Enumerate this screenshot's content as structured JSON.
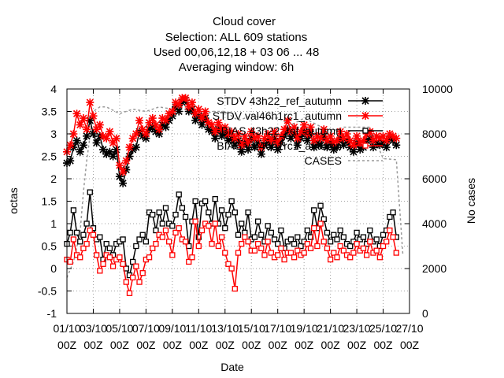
{
  "chart_data": {
    "type": "line",
    "title_lines": [
      "Cloud cover",
      "Selection: ALL     609 stations",
      "Used  00,06,12,18  + 03 06 ... 48",
      "Averaging window:  6h"
    ],
    "xlabel": "Date",
    "ylabel": "octas",
    "y2label": "No cases",
    "ylim": [
      -1,
      4
    ],
    "y2lim": [
      0,
      10000
    ],
    "yticks": [
      "-1",
      "-0.5",
      "0",
      "0.5",
      "1",
      "1.5",
      "2",
      "2.5",
      "3",
      "3.5",
      "4"
    ],
    "y2ticks": [
      "0",
      "2000",
      "4000",
      "6000",
      "8000",
      "10000"
    ],
    "xticks": [
      {
        "top": "01/10",
        "bottom": "00Z"
      },
      {
        "top": "03/10",
        "bottom": "00Z"
      },
      {
        "top": "05/10",
        "bottom": "00Z"
      },
      {
        "top": "07/10",
        "bottom": "00Z"
      },
      {
        "top": "09/10",
        "bottom": "00Z"
      },
      {
        "top": "11/10",
        "bottom": "00Z"
      },
      {
        "top": "13/10",
        "bottom": "00Z"
      },
      {
        "top": "15/10",
        "bottom": "00Z"
      },
      {
        "top": "17/10",
        "bottom": "00Z"
      },
      {
        "top": "19/10",
        "bottom": "00Z"
      },
      {
        "top": "21/10",
        "bottom": "00Z"
      },
      {
        "top": "23/10",
        "bottom": "00Z"
      },
      {
        "top": "25/10",
        "bottom": "00Z"
      },
      {
        "top": "27/10",
        "bottom": "00Z"
      }
    ],
    "xlim_days": [
      0,
      26
    ],
    "grid": true,
    "legend_position": "top-right",
    "series": [
      {
        "name": "STDV 43h22_ref_autumn",
        "color": "#000000",
        "marker": "star",
        "axis": "y",
        "x_days": [
          0.0,
          0.25,
          0.5,
          0.75,
          1.0,
          1.25,
          1.5,
          1.75,
          2.0,
          2.25,
          2.5,
          2.75,
          3.0,
          3.25,
          3.5,
          3.75,
          4.0,
          4.25,
          4.5,
          4.75,
          5.0,
          5.25,
          5.5,
          5.75,
          6.0,
          6.25,
          6.5,
          6.75,
          7.0,
          7.25,
          7.5,
          7.75,
          8.0,
          8.25,
          8.5,
          8.75,
          9.0,
          9.25,
          9.5,
          9.75,
          10.0,
          10.25,
          10.5,
          10.75,
          11.0,
          11.25,
          11.5,
          11.75,
          12.0,
          12.25,
          12.5,
          12.75,
          13.0,
          13.25,
          13.5,
          13.75,
          14.0,
          14.25,
          14.5,
          14.75,
          15.0,
          15.25,
          15.5,
          15.75,
          16.0,
          16.25,
          16.5,
          16.75,
          17.0,
          17.25,
          17.5,
          17.75,
          18.0,
          18.25,
          18.5,
          18.75,
          19.0,
          19.25,
          19.5,
          19.75,
          20.0,
          20.25,
          20.5,
          20.75,
          21.0,
          21.25,
          21.5,
          21.75,
          22.0,
          22.25,
          22.5,
          22.75,
          23.0,
          23.25,
          23.5,
          23.75,
          24.0,
          24.25,
          24.5,
          24.75,
          25.0
        ],
        "values": [
          2.35,
          2.4,
          2.7,
          2.85,
          2.6,
          2.75,
          2.95,
          3.3,
          3.0,
          2.8,
          2.95,
          2.65,
          2.55,
          2.6,
          2.5,
          2.65,
          2.05,
          1.9,
          2.2,
          2.5,
          2.65,
          2.7,
          3.05,
          2.95,
          2.9,
          3.1,
          3.15,
          3.05,
          3.0,
          3.2,
          3.15,
          3.3,
          3.4,
          3.6,
          3.5,
          3.7,
          3.75,
          3.5,
          3.55,
          3.3,
          3.4,
          3.2,
          3.35,
          3.1,
          3.05,
          2.9,
          3.1,
          2.95,
          3.0,
          2.85,
          2.9,
          2.75,
          2.85,
          2.6,
          2.8,
          2.65,
          2.9,
          2.7,
          2.8,
          2.55,
          2.75,
          2.85,
          2.7,
          2.9,
          2.65,
          2.8,
          2.95,
          3.1,
          2.9,
          3.0,
          2.75,
          2.9,
          3.05,
          2.85,
          3.0,
          2.7,
          2.8,
          2.75,
          2.95,
          2.7,
          2.8,
          2.65,
          2.7,
          2.9,
          2.75,
          2.85,
          2.7,
          2.6,
          2.8,
          2.65,
          2.7,
          2.85,
          2.9,
          2.7,
          2.8,
          2.75,
          2.8,
          2.7,
          2.9,
          2.85,
          2.75
        ]
      },
      {
        "name": "STDV val46h1rc1_autumn",
        "color": "#ff0000",
        "marker": "star",
        "axis": "y",
        "x_days": [
          0.0,
          0.25,
          0.5,
          0.75,
          1.0,
          1.25,
          1.5,
          1.75,
          2.0,
          2.25,
          2.5,
          2.75,
          3.0,
          3.25,
          3.5,
          3.75,
          4.0,
          4.25,
          4.5,
          4.75,
          5.0,
          5.25,
          5.5,
          5.75,
          6.0,
          6.25,
          6.5,
          6.75,
          7.0,
          7.25,
          7.5,
          7.75,
          8.0,
          8.25,
          8.5,
          8.75,
          9.0,
          9.25,
          9.5,
          9.75,
          10.0,
          10.25,
          10.5,
          10.75,
          11.0,
          11.25,
          11.5,
          11.75,
          12.0,
          12.25,
          12.5,
          12.75,
          13.0,
          13.25,
          13.5,
          13.75,
          14.0,
          14.25,
          14.5,
          14.75,
          15.0,
          15.25,
          15.5,
          15.75,
          16.0,
          16.25,
          16.5,
          16.75,
          17.0,
          17.25,
          17.5,
          17.75,
          18.0,
          18.25,
          18.5,
          18.75,
          19.0,
          19.25,
          19.5,
          19.75,
          20.0,
          20.25,
          20.5,
          20.75,
          21.0,
          21.25,
          21.5,
          21.75,
          22.0,
          22.25,
          22.5,
          22.75,
          23.0,
          23.25,
          23.5,
          23.75,
          24.0,
          24.25,
          24.5,
          24.75,
          25.0
        ],
        "values": [
          2.6,
          2.75,
          3.0,
          3.45,
          3.2,
          3.35,
          3.1,
          3.7,
          3.4,
          3.1,
          3.2,
          2.95,
          2.9,
          3.05,
          2.8,
          2.9,
          2.3,
          2.15,
          2.4,
          2.7,
          2.9,
          3.0,
          3.3,
          3.1,
          3.0,
          3.25,
          3.35,
          3.2,
          3.1,
          3.35,
          3.3,
          3.45,
          3.5,
          3.7,
          3.65,
          3.8,
          3.8,
          3.6,
          3.7,
          3.45,
          3.55,
          3.35,
          3.5,
          3.25,
          3.2,
          3.05,
          3.25,
          3.1,
          3.15,
          3.0,
          3.05,
          2.9,
          3.0,
          2.75,
          2.95,
          2.8,
          3.05,
          2.9,
          2.95,
          2.7,
          2.9,
          3.0,
          2.85,
          3.05,
          2.8,
          2.95,
          3.1,
          3.3,
          3.05,
          3.15,
          2.9,
          3.05,
          3.2,
          3.0,
          3.15,
          2.85,
          2.95,
          2.9,
          3.1,
          2.85,
          2.95,
          2.8,
          2.85,
          3.05,
          2.9,
          3.0,
          2.85,
          2.75,
          2.95,
          2.8,
          2.85,
          3.0,
          3.05,
          2.85,
          2.95,
          2.9,
          2.95,
          2.85,
          3.0,
          2.95,
          2.9
        ]
      },
      {
        "name": "BIAS 43h22_ref_autumn",
        "color": "#000000",
        "marker": "square",
        "axis": "y",
        "x_days": [
          0.0,
          0.25,
          0.5,
          0.75,
          1.0,
          1.25,
          1.5,
          1.75,
          2.0,
          2.25,
          2.5,
          2.75,
          3.0,
          3.25,
          3.5,
          3.75,
          4.0,
          4.25,
          4.5,
          4.75,
          5.0,
          5.25,
          5.5,
          5.75,
          6.0,
          6.25,
          6.5,
          6.75,
          7.0,
          7.25,
          7.5,
          7.75,
          8.0,
          8.25,
          8.5,
          8.75,
          9.0,
          9.25,
          9.5,
          9.75,
          10.0,
          10.25,
          10.5,
          10.75,
          11.0,
          11.25,
          11.5,
          11.75,
          12.0,
          12.25,
          12.5,
          12.75,
          13.0,
          13.25,
          13.5,
          13.75,
          14.0,
          14.25,
          14.5,
          14.75,
          15.0,
          15.25,
          15.5,
          15.75,
          16.0,
          16.25,
          16.5,
          16.75,
          17.0,
          17.25,
          17.5,
          17.75,
          18.0,
          18.25,
          18.5,
          18.75,
          19.0,
          19.25,
          19.5,
          19.75,
          20.0,
          20.25,
          20.5,
          20.75,
          21.0,
          21.25,
          21.5,
          21.75,
          22.0,
          22.25,
          22.5,
          22.75,
          23.0,
          23.25,
          23.5,
          23.75,
          24.0,
          24.25,
          24.5,
          24.75,
          25.0
        ],
        "values": [
          0.55,
          0.8,
          1.3,
          0.8,
          0.6,
          0.75,
          1.0,
          1.7,
          0.9,
          0.65,
          0.7,
          0.2,
          0.55,
          0.45,
          0.3,
          0.55,
          0.6,
          0.65,
          0.0,
          -0.15,
          0.15,
          0.5,
          0.65,
          0.75,
          0.6,
          1.25,
          1.2,
          0.85,
          1.25,
          1.0,
          1.35,
          1.0,
          0.95,
          1.2,
          1.65,
          1.35,
          1.15,
          0.5,
          1.05,
          1.5,
          0.7,
          1.45,
          1.5,
          1.25,
          1.0,
          1.55,
          1.0,
          1.3,
          0.9,
          1.2,
          1.5,
          1.25,
          0.75,
          1.0,
          0.8,
          1.25,
          0.65,
          0.7,
          1.05,
          0.75,
          0.6,
          0.95,
          0.8,
          0.65,
          0.55,
          0.85,
          0.45,
          0.6,
          0.65,
          0.55,
          0.7,
          0.5,
          0.6,
          0.85,
          0.7,
          1.3,
          0.9,
          1.4,
          1.1,
          0.8,
          0.6,
          0.75,
          0.65,
          0.85,
          0.7,
          0.55,
          0.5,
          0.6,
          0.8,
          0.65,
          0.7,
          0.55,
          0.85,
          0.6,
          0.65,
          0.5,
          0.75,
          0.85,
          1.15,
          1.25,
          0.7
        ]
      },
      {
        "name": "BIAS val46h1rc1_autumn",
        "color": "#ff0000",
        "marker": "square",
        "axis": "y",
        "x_days": [
          0.0,
          0.25,
          0.5,
          0.75,
          1.0,
          1.25,
          1.5,
          1.75,
          2.0,
          2.25,
          2.5,
          2.75,
          3.0,
          3.25,
          3.5,
          3.75,
          4.0,
          4.25,
          4.5,
          4.75,
          5.0,
          5.25,
          5.5,
          5.75,
          6.0,
          6.25,
          6.5,
          6.75,
          7.0,
          7.25,
          7.5,
          7.75,
          8.0,
          8.25,
          8.5,
          8.75,
          9.0,
          9.25,
          9.5,
          9.75,
          10.0,
          10.25,
          10.5,
          10.75,
          11.0,
          11.25,
          11.5,
          11.75,
          12.0,
          12.25,
          12.5,
          12.75,
          13.0,
          13.25,
          13.5,
          13.75,
          14.0,
          14.25,
          14.5,
          14.75,
          15.0,
          15.25,
          15.5,
          15.75,
          16.0,
          16.25,
          16.5,
          16.75,
          17.0,
          17.25,
          17.5,
          17.75,
          18.0,
          18.25,
          18.5,
          18.75,
          19.0,
          19.25,
          19.5,
          19.75,
          20.0,
          20.25,
          20.5,
          20.75,
          21.0,
          21.25,
          21.5,
          21.75,
          22.0,
          22.25,
          22.5,
          22.75,
          23.0,
          23.25,
          23.5,
          23.75,
          24.0,
          24.25,
          24.5,
          24.75,
          25.0
        ],
        "values": [
          0.2,
          0.15,
          0.65,
          0.3,
          0.25,
          0.45,
          0.55,
          0.85,
          0.75,
          0.3,
          -0.05,
          0.1,
          0.3,
          0.25,
          0.05,
          0.2,
          0.25,
          0.1,
          -0.3,
          -0.55,
          -0.2,
          0.05,
          -0.3,
          -0.1,
          0.2,
          0.25,
          0.45,
          0.55,
          0.75,
          0.7,
          0.85,
          0.6,
          0.3,
          0.8,
          0.9,
          0.65,
          0.6,
          0.15,
          0.25,
          1.05,
          0.5,
          0.85,
          1.0,
          0.95,
          0.55,
          1.0,
          0.5,
          0.7,
          0.35,
          0.1,
          0.0,
          -0.45,
          0.35,
          0.55,
          0.7,
          0.6,
          0.4,
          0.4,
          0.55,
          0.45,
          0.3,
          0.6,
          0.35,
          0.25,
          0.3,
          0.45,
          0.2,
          0.35,
          0.35,
          0.25,
          0.4,
          0.3,
          0.35,
          0.55,
          0.45,
          0.9,
          0.5,
          1.0,
          0.6,
          0.45,
          0.2,
          0.35,
          0.25,
          0.5,
          0.4,
          0.3,
          0.25,
          0.35,
          0.55,
          0.4,
          0.45,
          0.3,
          0.6,
          0.35,
          0.4,
          0.25,
          0.5,
          0.6,
          0.85,
          0.7,
          0.35
        ]
      },
      {
        "name": "CASES",
        "color": "#999999",
        "marker": "none",
        "dashed": true,
        "axis": "y2",
        "x_days": [
          0.0,
          0.5,
          1.0,
          1.25,
          1.5,
          2.0,
          2.5,
          3.0,
          4.0,
          5.0,
          6.0,
          7.0,
          8.0,
          9.0,
          10.0,
          11.0,
          12.0,
          13.0,
          14.0,
          15.0,
          16.0,
          17.0,
          18.0,
          19.0,
          20.0,
          21.0,
          22.0,
          23.0,
          24.0,
          25.0,
          25.5
        ],
        "values": [
          1600,
          2300,
          3600,
          5400,
          6800,
          9000,
          9200,
          9200,
          8900,
          9100,
          9000,
          9200,
          9100,
          9100,
          8700,
          9000,
          9000,
          8600,
          8800,
          8700,
          8700,
          8400,
          8700,
          8400,
          8100,
          8300,
          8300,
          8300,
          6900,
          6850,
          2600
        ]
      }
    ]
  }
}
